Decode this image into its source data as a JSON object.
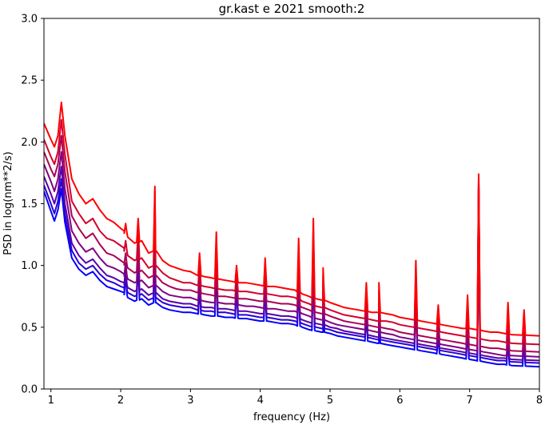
{
  "chart_data": {
    "type": "line",
    "title": "gr.kast e 2021 smooth:2",
    "xlabel": "frequency (Hz)",
    "ylabel": "PSD in log(nm**2/s)",
    "xlim": [
      0.9,
      8.0
    ],
    "ylim": [
      0.0,
      3.0
    ],
    "x_ticks": [
      1,
      2,
      3,
      4,
      5,
      6,
      7,
      8
    ],
    "y_ticks": [
      0.0,
      0.5,
      1.0,
      1.5,
      2.0,
      2.5,
      3.0
    ],
    "x_tick_labels": [
      "1",
      "2",
      "3",
      "4",
      "5",
      "6",
      "7",
      "8"
    ],
    "y_tick_labels": [
      "0.0",
      "0.5",
      "1.0",
      "1.5",
      "2.0",
      "2.5",
      "3.0"
    ],
    "grid": false,
    "legend": false,
    "series": [
      {
        "color": "#ff0000",
        "values": [
          2.15,
          2.02,
          1.96,
          2.05,
          2.32,
          2.05,
          1.7,
          1.58,
          1.5,
          1.54,
          1.45,
          1.38,
          1.35,
          1.3,
          1.28,
          1.23,
          1.18,
          1.2,
          1.1,
          1.12,
          1.04,
          1.0,
          0.98,
          0.96,
          0.95,
          0.92,
          0.91,
          0.9,
          0.89,
          0.88,
          0.87,
          0.86,
          0.86,
          0.85,
          0.84,
          0.83,
          0.83,
          0.82,
          0.81,
          0.8,
          0.77,
          0.75,
          0.73,
          0.72,
          0.7,
          0.68,
          0.66,
          0.65,
          0.64,
          0.63,
          0.62,
          0.62,
          0.61,
          0.6,
          0.58,
          0.57,
          0.56,
          0.55,
          0.54,
          0.53,
          0.52,
          0.51,
          0.5,
          0.49,
          0.49,
          0.48,
          0.47,
          0.46,
          0.46,
          0.45,
          0.44,
          0.43
        ]
      },
      {
        "color": "#d4002b",
        "values": [
          2.02,
          1.88,
          1.82,
          1.92,
          2.18,
          1.9,
          1.52,
          1.42,
          1.34,
          1.38,
          1.28,
          1.22,
          1.2,
          1.16,
          1.14,
          1.08,
          1.04,
          1.06,
          0.98,
          1.0,
          0.94,
          0.9,
          0.88,
          0.86,
          0.86,
          0.84,
          0.83,
          0.82,
          0.81,
          0.8,
          0.8,
          0.79,
          0.79,
          0.78,
          0.77,
          0.77,
          0.76,
          0.75,
          0.75,
          0.74,
          0.71,
          0.69,
          0.67,
          0.66,
          0.64,
          0.62,
          0.6,
          0.59,
          0.58,
          0.57,
          0.56,
          0.55,
          0.55,
          0.54,
          0.52,
          0.51,
          0.5,
          0.49,
          0.48,
          0.47,
          0.46,
          0.45,
          0.44,
          0.43,
          0.42,
          0.41,
          0.4,
          0.39,
          0.39,
          0.38,
          0.37,
          0.36
        ]
      },
      {
        "color": "#aa0055",
        "values": [
          1.92,
          1.78,
          1.72,
          1.82,
          2.05,
          1.76,
          1.4,
          1.3,
          1.22,
          1.26,
          1.17,
          1.1,
          1.08,
          1.04,
          1.02,
          0.98,
          0.94,
          0.96,
          0.9,
          0.92,
          0.86,
          0.83,
          0.81,
          0.8,
          0.8,
          0.78,
          0.77,
          0.76,
          0.75,
          0.75,
          0.74,
          0.73,
          0.73,
          0.72,
          0.71,
          0.71,
          0.7,
          0.69,
          0.69,
          0.68,
          0.66,
          0.64,
          0.62,
          0.61,
          0.59,
          0.57,
          0.55,
          0.54,
          0.53,
          0.52,
          0.51,
          0.5,
          0.49,
          0.48,
          0.46,
          0.45,
          0.44,
          0.43,
          0.42,
          0.41,
          0.4,
          0.39,
          0.38,
          0.37,
          0.36,
          0.35,
          0.34,
          0.33,
          0.33,
          0.32,
          0.31,
          0.3
        ]
      },
      {
        "color": "#800080",
        "values": [
          1.82,
          1.68,
          1.6,
          1.7,
          1.92,
          1.62,
          1.28,
          1.18,
          1.11,
          1.14,
          1.06,
          1.0,
          0.98,
          0.95,
          0.93,
          0.89,
          0.86,
          0.88,
          0.82,
          0.84,
          0.79,
          0.76,
          0.75,
          0.74,
          0.74,
          0.72,
          0.71,
          0.7,
          0.7,
          0.69,
          0.69,
          0.68,
          0.67,
          0.67,
          0.66,
          0.65,
          0.65,
          0.64,
          0.63,
          0.63,
          0.61,
          0.59,
          0.57,
          0.56,
          0.54,
          0.52,
          0.51,
          0.5,
          0.49,
          0.48,
          0.47,
          0.46,
          0.45,
          0.44,
          0.42,
          0.41,
          0.4,
          0.39,
          0.38,
          0.37,
          0.36,
          0.35,
          0.34,
          0.33,
          0.32,
          0.31,
          0.3,
          0.29,
          0.28,
          0.27,
          0.27,
          0.26
        ]
      },
      {
        "color": "#5500aa",
        "values": [
          1.72,
          1.58,
          1.5,
          1.6,
          1.8,
          1.5,
          1.18,
          1.08,
          1.02,
          1.05,
          0.98,
          0.92,
          0.9,
          0.87,
          0.86,
          0.82,
          0.79,
          0.81,
          0.76,
          0.78,
          0.73,
          0.71,
          0.7,
          0.69,
          0.69,
          0.67,
          0.66,
          0.66,
          0.65,
          0.65,
          0.64,
          0.63,
          0.63,
          0.62,
          0.61,
          0.61,
          0.6,
          0.59,
          0.59,
          0.58,
          0.56,
          0.54,
          0.53,
          0.52,
          0.5,
          0.49,
          0.47,
          0.46,
          0.45,
          0.44,
          0.43,
          0.42,
          0.41,
          0.4,
          0.39,
          0.38,
          0.37,
          0.36,
          0.35,
          0.34,
          0.33,
          0.32,
          0.31,
          0.3,
          0.29,
          0.28,
          0.27,
          0.26,
          0.25,
          0.25,
          0.24,
          0.23
        ]
      },
      {
        "color": "#2a00d5",
        "values": [
          1.65,
          1.5,
          1.42,
          1.52,
          1.7,
          1.42,
          1.12,
          1.02,
          0.97,
          1.0,
          0.93,
          0.88,
          0.86,
          0.83,
          0.82,
          0.78,
          0.75,
          0.77,
          0.72,
          0.74,
          0.7,
          0.68,
          0.67,
          0.66,
          0.66,
          0.64,
          0.63,
          0.63,
          0.62,
          0.62,
          0.61,
          0.6,
          0.6,
          0.59,
          0.58,
          0.58,
          0.57,
          0.56,
          0.56,
          0.55,
          0.53,
          0.51,
          0.5,
          0.49,
          0.48,
          0.46,
          0.45,
          0.44,
          0.43,
          0.42,
          0.41,
          0.4,
          0.39,
          0.38,
          0.37,
          0.36,
          0.35,
          0.34,
          0.33,
          0.32,
          0.31,
          0.3,
          0.29,
          0.28,
          0.27,
          0.26,
          0.25,
          0.24,
          0.23,
          0.23,
          0.22,
          0.21
        ]
      },
      {
        "color": "#0000ff",
        "values": [
          1.6,
          1.44,
          1.36,
          1.45,
          1.62,
          1.35,
          1.06,
          0.97,
          0.92,
          0.95,
          0.88,
          0.83,
          0.81,
          0.79,
          0.78,
          0.74,
          0.71,
          0.73,
          0.68,
          0.7,
          0.66,
          0.64,
          0.63,
          0.62,
          0.62,
          0.61,
          0.6,
          0.59,
          0.59,
          0.58,
          0.58,
          0.57,
          0.57,
          0.56,
          0.55,
          0.55,
          0.54,
          0.53,
          0.53,
          0.52,
          0.5,
          0.48,
          0.47,
          0.46,
          0.45,
          0.43,
          0.42,
          0.41,
          0.4,
          0.39,
          0.38,
          0.37,
          0.36,
          0.35,
          0.34,
          0.33,
          0.32,
          0.31,
          0.3,
          0.29,
          0.28,
          0.27,
          0.26,
          0.25,
          0.24,
          0.23,
          0.22,
          0.21,
          0.2,
          0.2,
          0.19,
          0.18
        ]
      }
    ],
    "x": [
      0.9,
      1.0,
      1.05,
      1.1,
      1.15,
      1.2,
      1.3,
      1.4,
      1.5,
      1.6,
      1.7,
      1.8,
      1.9,
      2.0,
      2.05,
      2.1,
      2.2,
      2.3,
      2.4,
      2.5,
      2.6,
      2.7,
      2.8,
      2.9,
      3.0,
      3.1,
      3.2,
      3.3,
      3.4,
      3.5,
      3.6,
      3.7,
      3.8,
      3.9,
      4.0,
      4.1,
      4.2,
      4.3,
      4.4,
      4.5,
      4.6,
      4.7,
      4.8,
      4.9,
      5.0,
      5.1,
      5.2,
      5.3,
      5.4,
      5.5,
      5.6,
      5.7,
      5.8,
      5.9,
      6.0,
      6.1,
      6.2,
      6.3,
      6.4,
      6.5,
      6.6,
      6.7,
      6.8,
      6.9,
      7.0,
      7.1,
      7.2,
      7.3,
      7.4,
      7.5,
      7.6,
      8.0
    ],
    "peaks": [
      {
        "x": 2.07,
        "heights": [
          1.34,
          1.2,
          1.1,
          1.02,
          0.98,
          0.95,
          0.92
        ]
      },
      {
        "x": 2.25,
        "heights": [
          1.38,
          1.3,
          1.22,
          1.18,
          1.12,
          1.08,
          1.04
        ]
      },
      {
        "x": 2.49,
        "heights": [
          1.64,
          1.6,
          1.56,
          1.52,
          1.48,
          1.44,
          1.4
        ]
      },
      {
        "x": 3.13,
        "heights": [
          1.1,
          1.02,
          0.96,
          0.92,
          0.88,
          0.85,
          0.82
        ]
      },
      {
        "x": 3.37,
        "heights": [
          1.27,
          1.2,
          1.14,
          1.1,
          1.06,
          1.02,
          0.99
        ]
      },
      {
        "x": 3.66,
        "heights": [
          1.0,
          0.96,
          0.92,
          0.9,
          0.88,
          0.86,
          0.84
        ]
      },
      {
        "x": 4.07,
        "heights": [
          1.06,
          0.98,
          0.92,
          0.88,
          0.85,
          0.82,
          0.8
        ]
      },
      {
        "x": 4.55,
        "heights": [
          1.22,
          1.12,
          1.02,
          0.95,
          0.9,
          0.86,
          0.83
        ]
      },
      {
        "x": 4.76,
        "heights": [
          1.38,
          1.28,
          1.18,
          1.1,
          1.04,
          0.99,
          0.95
        ]
      },
      {
        "x": 4.9,
        "heights": [
          0.98,
          0.92,
          0.88,
          0.84,
          0.8,
          0.77,
          0.74
        ]
      },
      {
        "x": 5.52,
        "heights": [
          0.86,
          0.8,
          0.74,
          0.7,
          0.66,
          0.63,
          0.6
        ]
      },
      {
        "x": 5.7,
        "heights": [
          0.86,
          0.8,
          0.74,
          0.7,
          0.66,
          0.63,
          0.6
        ]
      },
      {
        "x": 6.23,
        "heights": [
          1.04,
          0.98,
          0.92,
          0.88,
          0.84,
          0.8,
          0.77
        ]
      },
      {
        "x": 6.55,
        "heights": [
          0.68,
          0.62,
          0.56,
          0.52,
          0.48,
          0.45,
          0.42
        ]
      },
      {
        "x": 6.97,
        "heights": [
          0.76,
          0.7,
          0.64,
          0.6,
          0.56,
          0.52,
          0.49
        ]
      },
      {
        "x": 7.13,
        "heights": [
          1.74,
          1.72,
          1.7,
          1.68,
          1.66,
          1.64,
          1.62
        ]
      },
      {
        "x": 7.55,
        "heights": [
          0.7,
          0.62,
          0.55,
          0.5,
          0.46,
          0.42,
          0.39
        ]
      },
      {
        "x": 7.78,
        "heights": [
          0.64,
          0.58,
          0.52,
          0.48,
          0.44,
          0.4,
          0.37
        ]
      }
    ]
  }
}
